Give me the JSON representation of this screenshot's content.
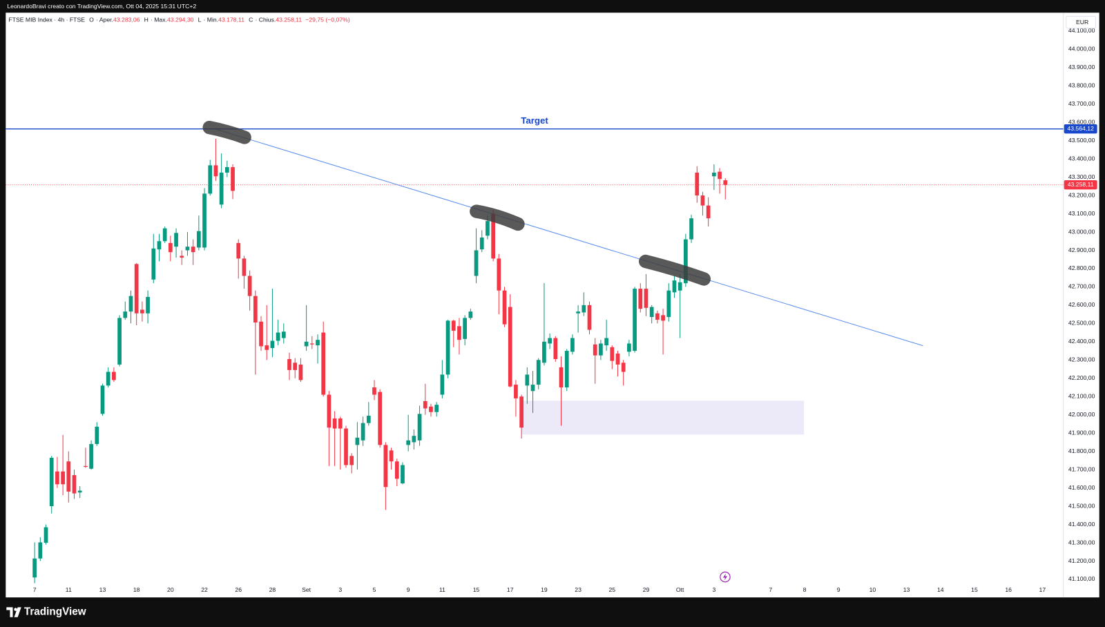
{
  "header": {
    "credit": "LeonardoBravi creato con TradingView.com, Ott 04, 2025 15:31 UTC+2",
    "brand": "TradingView"
  },
  "chart_data": {
    "type": "candlestick",
    "legend": {
      "symbol": "FTSE MIB Index · 4h · FTSE",
      "items": [
        {
          "key": "O",
          "label": "· Aper.",
          "value": "43.283,06"
        },
        {
          "key": "H",
          "label": "· Max.",
          "value": "43.294,30"
        },
        {
          "key": "L",
          "label": "· Min.",
          "value": "43.178,11"
        },
        {
          "key": "C",
          "label": "· Chius.",
          "value": "43.258,11"
        }
      ],
      "change": "−29,75 (−0,07%)"
    },
    "currency": "EUR",
    "up_color": "#089981",
    "down_color": "#f23645",
    "open": [
      41110,
      41214,
      41300,
      41500,
      41690,
      41690,
      41745,
      41670,
      41575,
      41720,
      41705,
      41840,
      42005,
      42160,
      42235,
      42275,
      42530,
      42565,
      42825,
      42575,
      42555,
      42740,
      42905,
      42950,
      42940,
      42920,
      42870,
      42900,
      42920,
      42915,
      42915,
      43210,
      43365,
      43150,
      43325,
      43355,
      42940,
      42855,
      42760,
      42650,
      42510,
      42380,
      42365,
      42405,
      42420,
      42305,
      42285,
      42275,
      42375,
      42390,
      42380,
      42450,
      42110,
      41980,
      41980,
      41925,
      41775,
      41835,
      41860,
      41955,
      42150,
      42125,
      41835,
      41805,
      41745,
      41625,
      41835,
      41850,
      41860,
      42075,
      42045,
      42015,
      42110,
      42220,
      42515,
      42485,
      42415,
      42530,
      42760,
      42905,
      42980,
      43100,
      42855,
      42680,
      42590,
      42165,
      42100,
      42160,
      42130,
      42165,
      42285,
      42390,
      42420,
      42260,
      42150,
      42345,
      42555,
      42560,
      42600,
      42385,
      42325,
      42380,
      42370,
      42335,
      42285,
      42345,
      42350,
      42690,
      42690,
      42535,
      42555,
      42545,
      42535,
      42670,
      42680,
      42720,
      42960,
      43325,
      43200,
      43145,
      43305,
      43330,
      43283.06
    ],
    "high": [
      41302,
      41330,
      41400,
      41775,
      41770,
      41890,
      41800,
      41700,
      41610,
      41820,
      41860,
      41960,
      42170,
      42260,
      42260,
      42545,
      42620,
      42680,
      42830,
      42620,
      42680,
      42990,
      42990,
      43030,
      42980,
      43020,
      42900,
      43000,
      42960,
      43090,
      43240,
      43395,
      43510,
      43430,
      43390,
      43370,
      42960,
      42870,
      42790,
      42680,
      42540,
      42600,
      42690,
      42520,
      42500,
      42340,
      42310,
      42310,
      42600,
      42430,
      42440,
      42510,
      42130,
      42020,
      41990,
      41940,
      41790,
      41960,
      41990,
      42070,
      42190,
      42140,
      41850,
      41820,
      41760,
      41740,
      42000,
      41920,
      42050,
      42170,
      42060,
      42070,
      42300,
      42520,
      42520,
      42530,
      42545,
      42580,
      43020,
      43010,
      43090,
      43120,
      42880,
      42700,
      42660,
      42190,
      42110,
      42260,
      42240,
      42310,
      42720,
      42445,
      42430,
      42320,
      42360,
      42440,
      42600,
      42670,
      42620,
      42420,
      42410,
      42520,
      42380,
      42350,
      42300,
      42410,
      42700,
      42720,
      42770,
      42600,
      42570,
      42580,
      42720,
      42760,
      42770,
      42990,
      43095,
      43360,
      43220,
      43190,
      43370,
      43350,
      43294.3
    ],
    "low": [
      41079,
      41200,
      41290,
      41460,
      41600,
      41560,
      41520,
      41540,
      41545,
      41710,
      41700,
      41830,
      41995,
      42150,
      42180,
      42265,
      42520,
      42500,
      42490,
      42510,
      42500,
      42720,
      42840,
      42940,
      42840,
      42860,
      42820,
      42870,
      42820,
      42900,
      42900,
      43200,
      43280,
      43130,
      43300,
      43180,
      42745,
      42690,
      42570,
      42220,
      42350,
      42300,
      42315,
      42380,
      42390,
      42190,
      42200,
      42180,
      42350,
      42360,
      42280,
      42100,
      41720,
      41720,
      41700,
      41710,
      41680,
      41700,
      41830,
      41940,
      42080,
      41820,
      41480,
      41700,
      41610,
      41620,
      41800,
      41810,
      41830,
      42000,
      41990,
      41990,
      42090,
      42200,
      42370,
      42330,
      42380,
      42520,
      42720,
      42890,
      42960,
      42840,
      42550,
      42480,
      42150,
      41990,
      41870,
      42060,
      42010,
      42140,
      42270,
      42360,
      42290,
      41940,
      42130,
      42330,
      42450,
      42540,
      42440,
      42170,
      42300,
      42350,
      42250,
      42210,
      42160,
      42320,
      42340,
      42560,
      42540,
      42500,
      42500,
      42330,
      42510,
      42640,
      42420,
      42700,
      42940,
      43160,
      43090,
      43030,
      43230,
      43210,
      43178.11
    ],
    "close": [
      41214,
      41302,
      41385,
      41765,
      41620,
      41620,
      41580,
      41570,
      41585,
      41715,
      41840,
      41935,
      42160,
      42235,
      42190,
      42530,
      42565,
      42650,
      42555,
      42555,
      42645,
      42910,
      42950,
      43020,
      42890,
      42995,
      42860,
      42920,
      42890,
      43005,
      43210,
      43365,
      43305,
      43325,
      43355,
      43225,
      42855,
      42760,
      42650,
      42505,
      42375,
      42355,
      42405,
      42450,
      42455,
      42245,
      42245,
      42190,
      42400,
      42385,
      42410,
      42110,
      41930,
      41925,
      41925,
      41725,
      41725,
      41875,
      41955,
      41995,
      42110,
      41835,
      41605,
      41745,
      41650,
      41725,
      41860,
      41885,
      42005,
      42035,
      42015,
      42055,
      42220,
      42515,
      42460,
      42410,
      42530,
      42565,
      42900,
      42970,
      43060,
      42855,
      42680,
      42495,
      42155,
      42090,
      41930,
      42220,
      42165,
      42300,
      42400,
      42420,
      42305,
      42150,
      42350,
      42420,
      42565,
      42600,
      42465,
      42325,
      42390,
      42420,
      42295,
      42275,
      42235,
      42390,
      42690,
      42580,
      42585,
      42590,
      42520,
      42515,
      42680,
      42735,
      42725,
      42960,
      43075,
      43200,
      43145,
      43075,
      43325,
      43290,
      43258.11
    ],
    "xlim": [
      -5.1,
      181.7
    ],
    "xticks": [
      {
        "value": 0,
        "label": "7"
      },
      {
        "value": 6,
        "label": "11"
      },
      {
        "value": 12,
        "label": "13"
      },
      {
        "value": 18,
        "label": "18"
      },
      {
        "value": 24,
        "label": "20"
      },
      {
        "value": 30,
        "label": "22"
      },
      {
        "value": 36,
        "label": "26"
      },
      {
        "value": 42,
        "label": "28"
      },
      {
        "value": 48,
        "label": "Set"
      },
      {
        "value": 54,
        "label": "3"
      },
      {
        "value": 60,
        "label": "5"
      },
      {
        "value": 66,
        "label": "9"
      },
      {
        "value": 72,
        "label": "11"
      },
      {
        "value": 78,
        "label": "15"
      },
      {
        "value": 84,
        "label": "17"
      },
      {
        "value": 90,
        "label": "19"
      },
      {
        "value": 96,
        "label": "23"
      },
      {
        "value": 102,
        "label": "25"
      },
      {
        "value": 108,
        "label": "29"
      },
      {
        "value": 114,
        "label": "Ott"
      },
      {
        "value": 120,
        "label": "3"
      },
      {
        "value": 130,
        "label": "7"
      },
      {
        "value": 136,
        "label": "8"
      },
      {
        "value": 142,
        "label": "9"
      },
      {
        "value": 148,
        "label": "10"
      },
      {
        "value": 154,
        "label": "13"
      },
      {
        "value": 160,
        "label": "14"
      },
      {
        "value": 166,
        "label": "15"
      },
      {
        "value": 172,
        "label": "16"
      },
      {
        "value": 178,
        "label": "17"
      }
    ],
    "ylim": [
      41001,
      44200
    ],
    "yticks": [
      {
        "value": 41100,
        "label": "41.100,00"
      },
      {
        "value": 41200,
        "label": "41.200,00"
      },
      {
        "value": 41300,
        "label": "41.300,00"
      },
      {
        "value": 41400,
        "label": "41.400,00"
      },
      {
        "value": 41500,
        "label": "41.500,00"
      },
      {
        "value": 41600,
        "label": "41.600,00"
      },
      {
        "value": 41700,
        "label": "41.700,00"
      },
      {
        "value": 41800,
        "label": "41.800,00"
      },
      {
        "value": 41900,
        "label": "41.900,00"
      },
      {
        "value": 42000,
        "label": "42.000,00"
      },
      {
        "value": 42100,
        "label": "42.100,00"
      },
      {
        "value": 42200,
        "label": "42.200,00"
      },
      {
        "value": 42300,
        "label": "42.300,00"
      },
      {
        "value": 42400,
        "label": "42.400,00"
      },
      {
        "value": 42500,
        "label": "42.500,00"
      },
      {
        "value": 42600,
        "label": "42.600,00"
      },
      {
        "value": 42700,
        "label": "42.700,00"
      },
      {
        "value": 42800,
        "label": "42.800,00"
      },
      {
        "value": 42900,
        "label": "42.900,00"
      },
      {
        "value": 43000,
        "label": "43.000,00"
      },
      {
        "value": 43100,
        "label": "43.100,00"
      },
      {
        "value": 43200,
        "label": "43.200,00"
      },
      {
        "value": 43300,
        "label": "43.300,00"
      },
      {
        "value": 43400,
        "label": "43.400,00"
      },
      {
        "value": 43500,
        "label": "43.500,00"
      },
      {
        "value": 43600,
        "label": "43.600,00"
      },
      {
        "value": 43700,
        "label": "43.700,00"
      },
      {
        "value": 43800,
        "label": "43.800,00"
      },
      {
        "value": 43900,
        "label": "43.900,00"
      },
      {
        "value": 44000,
        "label": "44.000,00"
      },
      {
        "value": 44100,
        "label": "44.100,00"
      }
    ],
    "hlines": [
      {
        "name": "Target",
        "value": 43564.12,
        "label": "43.564,12",
        "color": "#1848cc"
      }
    ],
    "price_line": {
      "value": 43258.11,
      "label": "43.258,11",
      "color": "#f23645"
    },
    "trendline": {
      "x": [
        31.9,
        156.9
      ],
      "y": [
        43564,
        42378
      ],
      "color": "#5b8def"
    },
    "zone": {
      "x": [
        86,
        135.9
      ],
      "y": [
        41892,
        42077
      ],
      "color": "#ece9f8"
    }
  }
}
